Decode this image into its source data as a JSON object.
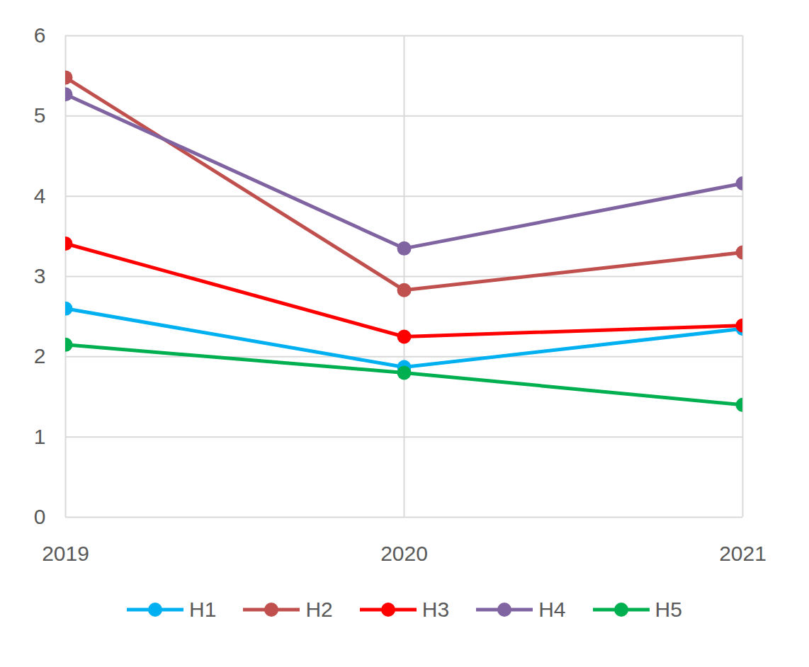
{
  "chart_data": {
    "type": "line",
    "categories": [
      "2019",
      "2020",
      "2021"
    ],
    "series": [
      {
        "name": "H1",
        "color": "#00B0F0",
        "values": [
          2.6,
          1.87,
          2.35
        ]
      },
      {
        "name": "H2",
        "color": "#C0504D",
        "values": [
          5.48,
          2.83,
          3.3
        ]
      },
      {
        "name": "H3",
        "color": "#FF0000",
        "values": [
          3.41,
          2.25,
          2.39
        ]
      },
      {
        "name": "H4",
        "color": "#8064A2",
        "values": [
          5.27,
          3.35,
          4.16
        ]
      },
      {
        "name": "H5",
        "color": "#00B050",
        "values": [
          2.15,
          1.8,
          1.4
        ]
      }
    ],
    "ylim": [
      0,
      6
    ],
    "yticks": [
      0,
      1,
      2,
      3,
      4,
      5,
      6
    ],
    "grid": true,
    "legend": "bottom",
    "marker": "circle"
  }
}
